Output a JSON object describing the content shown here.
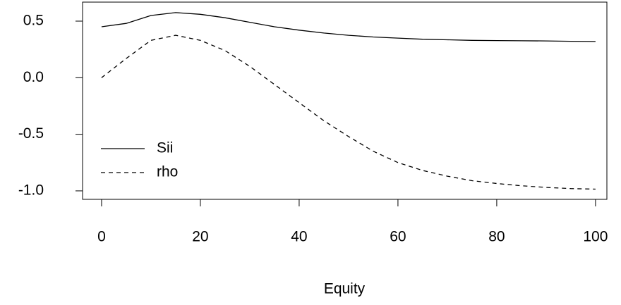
{
  "chart_data": {
    "type": "line",
    "x_label": "Equity",
    "x": [
      0,
      5,
      10,
      15,
      20,
      25,
      30,
      35,
      40,
      45,
      50,
      55,
      60,
      65,
      70,
      75,
      80,
      85,
      90,
      95,
      100
    ],
    "series": [
      {
        "name": "Sii",
        "color": "#000000",
        "dash": "solid",
        "values": [
          0.45,
          0.48,
          0.55,
          0.575,
          0.56,
          0.53,
          0.49,
          0.45,
          0.42,
          0.395,
          0.375,
          0.36,
          0.35,
          0.34,
          0.335,
          0.33,
          0.328,
          0.326,
          0.325,
          0.322,
          0.32
        ]
      },
      {
        "name": "rho",
        "color": "#000000",
        "dash": "dashed",
        "values": [
          0,
          0.17,
          0.33,
          0.375,
          0.33,
          0.24,
          0.1,
          -0.06,
          -0.22,
          -0.38,
          -0.52,
          -0.65,
          -0.75,
          -0.82,
          -0.87,
          -0.91,
          -0.935,
          -0.955,
          -0.97,
          -0.98,
          -0.985
        ]
      }
    ],
    "xlim": [
      -3.85,
      102.3
    ],
    "ylim": [
      -1.075,
      0.668
    ],
    "xticks": [
      0,
      20,
      40,
      60,
      80,
      100
    ],
    "yticks": [
      {
        "value": 0.5,
        "label": "0.5"
      },
      {
        "value": 0,
        "label": "0.0"
      },
      {
        "value": -0.5,
        "label": "-0.5"
      },
      {
        "value": -1,
        "label": "-1.0"
      }
    ],
    "legend": "bottom-left",
    "grid": false
  }
}
